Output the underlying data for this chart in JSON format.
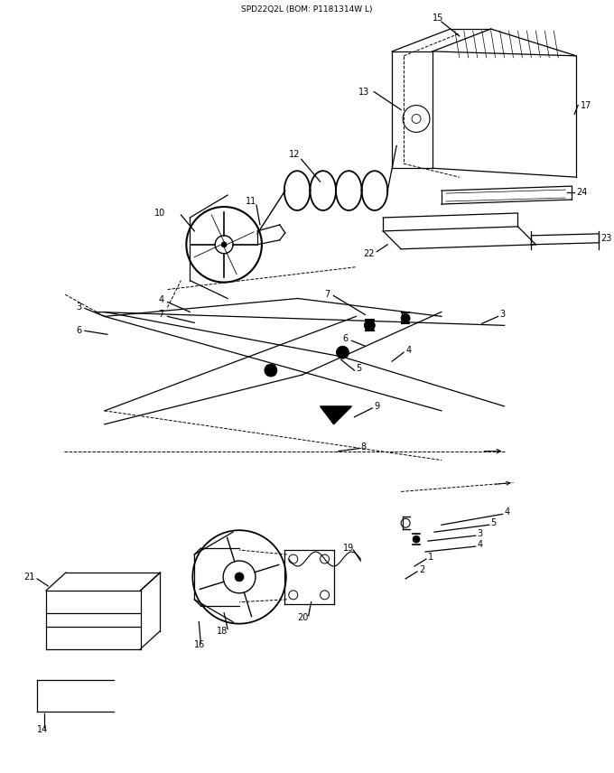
{
  "title": "SPD22Q2L (BOM: P1181314W L)",
  "bg": "#ffffff",
  "lfs": 7,
  "tfs": 6.5
}
